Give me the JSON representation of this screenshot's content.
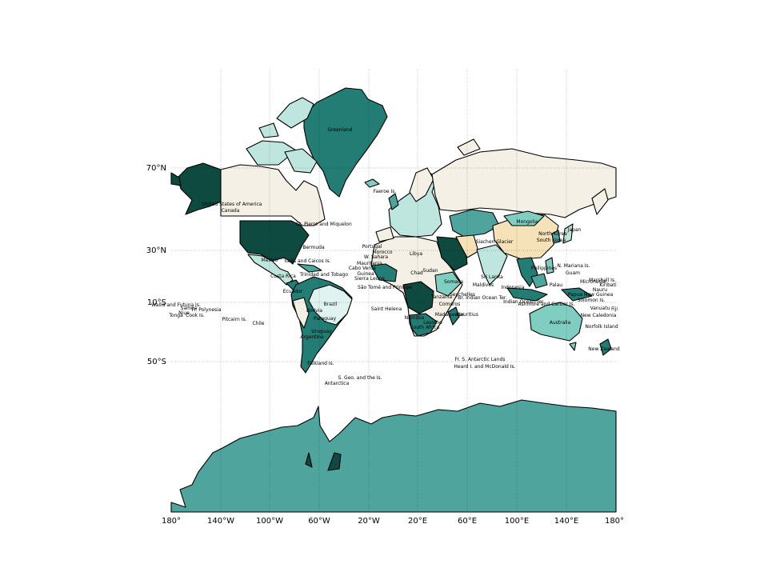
{
  "colors": {
    "ocean": "#ffffff",
    "c_light": "#f5f0e6",
    "c_tan": "#f6e2b8",
    "c_pale": "#e1f3f0",
    "c_mint": "#bfe6de",
    "c_aqua": "#80cdc1",
    "c_teal": "#4fa59d",
    "c_sea": "#237d74",
    "c_dark": "#0e4a40"
  },
  "axes": {
    "lon_ticks": [
      "180°",
      "140°W",
      "100°W",
      "60°W",
      "20°W",
      "20°E",
      "60°E",
      "100°E",
      "140°E",
      "180°"
    ],
    "lat_ticks": [
      "70°N",
      "30°N",
      "10°S",
      "50°S"
    ]
  },
  "labels": {
    "greenland": "Greenland",
    "faeroe": "Faeroe Is.",
    "usa": "United States of America",
    "canada": "Canada",
    "st_pierre": "St. Pierre and Miquelon",
    "bermuda": "Bermuda",
    "portugal": "Portugal",
    "morocco": "Morocco",
    "w_sahara": "W. Sahara",
    "mauritania": "Mauritania",
    "cabo_verde": "Cabo Verde",
    "guinea": "Guinea",
    "sierra": "Sierra Leone",
    "sao_tome": "São Tomé and Principe",
    "mexico": "Mexico",
    "turks": "Turks and Caicos Is.",
    "trinidad": "Trinidad and Tobago",
    "costa_rica": "Costa Rica",
    "ecuador": "Ecuador",
    "brazil": "Brazil",
    "bolivia": "Bolivia",
    "paraguay": "Paraguay",
    "uruguay": "Uruguay",
    "argentina": "Argentina",
    "chile": "Chile",
    "falkland": "Falkland Is.",
    "s_georgia": "S. Geo. and the Is.",
    "antarctica": "Antarctica",
    "saint_helena": "Saint Helena",
    "namibia": "Namibia",
    "s_africa": "South Africa",
    "lesotho": "Lesotho",
    "libya": "Libya",
    "chad": "Chad",
    "sudan": "Sudan",
    "somalia": "Somalia",
    "tanzania": "Tanzania",
    "comoros": "Comoros",
    "madagascar": "Madagascar",
    "mauritius": "Mauritius",
    "seychelles": "Seychelles",
    "br_indian": "Br. Indian Ocean Ter.",
    "maldives": "Maldives",
    "sri_lanka": "Sri Lanka",
    "siachen": "Siachen Glacier",
    "mongolia": "Mongolia",
    "n_korea": "North Korea",
    "s_korea": "South Korea",
    "japan": "Japan",
    "philippines": "Philippines",
    "n_mariana": "N. Mariana Is.",
    "guam": "Guam",
    "palau": "Palau",
    "micronesia": "Micronesia",
    "marshall": "Marshall Is.",
    "kiribati": "Kiribati",
    "nauru": "Nauru",
    "indonesia": "Indonesia",
    "indian_ocean": "Indian Ocean Ter.",
    "ashmore": "Ashmore and Cartier Is.",
    "png": "Papua New Guinea",
    "solomon": "Solomon Is.",
    "vanuatu": "Vanuatu",
    "fiji": "Fiji",
    "new_caledonia": "New Caledonia",
    "norfolk": "Norfolk Island",
    "australia": "Australia",
    "new_zealand": "New Zealand",
    "fr_antarctic": "Fr. S. Antarctic Lands",
    "heard": "Heard I. and McDonald Is.",
    "wallis": "Wallis and Futuna Is.",
    "samoa": "Samoa",
    "fr_polynesia": "Fr. Polynesia",
    "niue": "Niue",
    "tonga": "Tonga",
    "cook": "Cook Is.",
    "pitcairn": "Pitcairn Is."
  }
}
